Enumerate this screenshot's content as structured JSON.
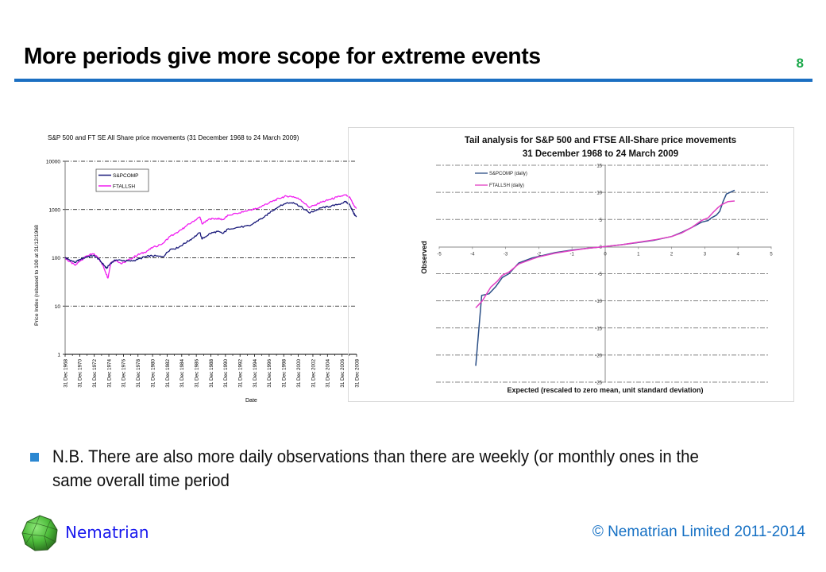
{
  "slide": {
    "title": "More periods give more scope for extreme events",
    "page_number": "8",
    "bullet": "N.B. There are also more daily observations than there are weekly (or monthly ones in the same overall time period",
    "brand": "Nematrian",
    "copyright": "© Nematrian Limited 2011-2014",
    "colors": {
      "title_rule": "#1b6fc2",
      "page_number": "#1aa84a",
      "bullet": "#2b87d1",
      "brand": "#1a1aee",
      "copyright": "#1570c4"
    }
  },
  "chart_data": [
    {
      "type": "line",
      "title": "S&P 500 and FT SE All Share price movements (31 December 1968 to 24 March 2009)",
      "xlabel": "Date",
      "ylabel": "Price Index (rebased to 100 at 31/12/1968",
      "yscale": "log",
      "ylim": [
        1,
        10000
      ],
      "yticks": [
        "1",
        "10",
        "100",
        "1000",
        "10000"
      ],
      "xlim": [
        1968.99,
        2009.23
      ],
      "xticks": [
        "31 Dec 1968",
        "31 Dec 1970",
        "31 Dec 1972",
        "31 Dec 1974",
        "31 Dec 1976",
        "31 Dec 1978",
        "31 Dec 1980",
        "31 Dec 1982",
        "31 Dec 1984",
        "31 Dec 1986",
        "31 Dec 1988",
        "31 Dec 1990",
        "31 Dec 1992",
        "31 Dec 1994",
        "31 Dec 1996",
        "31 Dec 1998",
        "31 Dec 2000",
        "31 Dec 2002",
        "31 Dec 2004",
        "31 Dec 2006",
        "31 Dec 2008"
      ],
      "grid": "horizontal dash-dot",
      "legend": "top-left",
      "series": [
        {
          "name": "S&PCOMP",
          "color": "#1a1a7a",
          "x": [
            1969,
            1969.5,
            1970.4,
            1971.0,
            1972.0,
            1972.9,
            1973.6,
            1974.3,
            1974.7,
            1975.3,
            1976.0,
            1977.0,
            1978.0,
            1979.0,
            1980.0,
            1981.0,
            1982.5,
            1983.5,
            1984.5,
            1985.5,
            1986.5,
            1987.6,
            1987.9,
            1989.0,
            1990.0,
            1990.8,
            1991.5,
            1993.0,
            1994.5,
            1995.5,
            1996.5,
            1997.5,
            1998.5,
            1999.5,
            2000.5,
            2001.5,
            2002.7,
            2003.5,
            2004.5,
            2005.5,
            2006.5,
            2007.7,
            2008.3,
            2008.8,
            2009.2
          ],
          "values": [
            100,
            92,
            80,
            92,
            105,
            112,
            95,
            72,
            60,
            78,
            90,
            88,
            85,
            92,
            105,
            110,
            105,
            150,
            160,
            200,
            250,
            330,
            245,
            320,
            350,
            320,
            400,
            430,
            460,
            580,
            700,
            930,
            1150,
            1350,
            1400,
            1150,
            850,
            950,
            1100,
            1150,
            1250,
            1450,
            1250,
            850,
            700
          ]
        },
        {
          "name": "FTALLSH",
          "color": "#f01ef0",
          "x": [
            1969,
            1969.5,
            1970.4,
            1971.0,
            1972.0,
            1972.9,
            1973.6,
            1974.3,
            1974.9,
            1975.3,
            1976.0,
            1976.8,
            1978.0,
            1979.0,
            1980.0,
            1981.0,
            1982.5,
            1983.5,
            1984.5,
            1985.5,
            1986.5,
            1987.6,
            1987.9,
            1989.0,
            1990.0,
            1990.8,
            1991.5,
            1993.0,
            1994.5,
            1995.5,
            1996.5,
            1997.5,
            1998.5,
            1999.5,
            2000.5,
            2001.5,
            2002.7,
            2003.5,
            2004.5,
            2005.5,
            2006.5,
            2007.7,
            2008.3,
            2008.8,
            2009.2
          ],
          "values": [
            100,
            85,
            70,
            85,
            110,
            120,
            100,
            65,
            38,
            80,
            90,
            75,
            95,
            115,
            130,
            160,
            200,
            280,
            330,
            430,
            550,
            700,
            500,
            640,
            650,
            620,
            760,
            850,
            980,
            1050,
            1250,
            1450,
            1700,
            1900,
            1850,
            1600,
            1100,
            1250,
            1450,
            1600,
            1800,
            2000,
            1750,
            1250,
            1050
          ]
        }
      ]
    },
    {
      "type": "line",
      "title": "Tail analysis for S&P 500 and FTSE All-Share price movements\n31 December 1968 to 24 March 2009",
      "title_lines": [
        "Tail analysis for S&P 500 and FTSE All-Share price movements",
        "31 December 1968 to 24 March 2009"
      ],
      "xlabel": "Expected (rescaled to zero mean, unit standard deviation)",
      "ylabel": "Observed",
      "xlim": [
        -5,
        5
      ],
      "ylim": [
        -25,
        15
      ],
      "xticks": [
        "-5",
        "-4",
        "-3",
        "-2",
        "-1",
        "0",
        "1",
        "2",
        "3",
        "4",
        "5"
      ],
      "yticks": [
        "-25",
        "-20",
        "-15",
        "-10",
        "-5",
        "0",
        "5",
        "10",
        "15"
      ],
      "grid": "horizontal dash-dot",
      "legend": "top-left",
      "series": [
        {
          "name": "S&PCOMP (daily)",
          "color": "#2b4f86",
          "x": [
            -3.9,
            -3.72,
            -3.5,
            -3.3,
            -3.1,
            -2.9,
            -2.6,
            -2.2,
            -2.0,
            -1.5,
            -1.0,
            -0.5,
            0,
            0.5,
            1.0,
            1.5,
            2.0,
            2.3,
            2.6,
            2.9,
            3.1,
            3.2,
            3.35,
            3.45,
            3.55,
            3.65,
            3.8,
            3.9
          ],
          "values": [
            -22,
            -9.0,
            -8.7,
            -7.4,
            -5.7,
            -5.0,
            -3.0,
            -2.1,
            -1.8,
            -1.1,
            -0.65,
            -0.3,
            0,
            0.35,
            0.75,
            1.2,
            1.85,
            2.6,
            3.5,
            4.5,
            4.8,
            5.3,
            5.8,
            6.5,
            8.3,
            9.7,
            10.1,
            10.4
          ]
        },
        {
          "name": "FTALLSH (daily)",
          "color": "#e23fc4",
          "x": [
            -3.9,
            -3.7,
            -3.45,
            -3.25,
            -3.1,
            -2.9,
            -2.6,
            -2.2,
            -2.0,
            -1.5,
            -1.0,
            -0.5,
            0,
            0.5,
            1.0,
            1.5,
            2.0,
            2.3,
            2.6,
            2.9,
            3.1,
            3.25,
            3.4,
            3.5,
            3.7,
            3.9
          ],
          "values": [
            -11.3,
            -10.0,
            -7.5,
            -6.4,
            -5.3,
            -4.7,
            -3.2,
            -2.3,
            -1.9,
            -1.2,
            -0.7,
            -0.3,
            0,
            0.35,
            0.8,
            1.25,
            1.85,
            2.5,
            3.5,
            4.8,
            5.3,
            6.3,
            7.2,
            7.7,
            8.3,
            8.4
          ]
        }
      ]
    }
  ]
}
